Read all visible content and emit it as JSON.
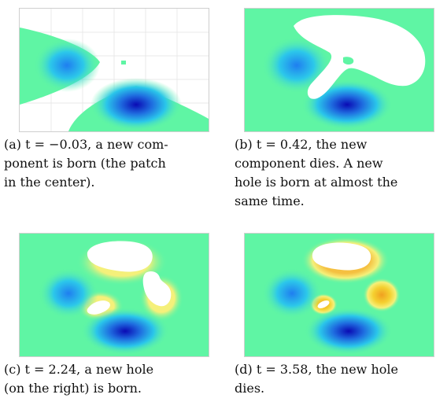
{
  "figure": {
    "subfigures": [
      {
        "id": "a",
        "label": "(a)",
        "t_expr": "t = −0.03",
        "text": ", a new com-ponent is born (the patch in the center)."
      },
      {
        "id": "b",
        "label": "(b)",
        "t_expr": "t = 0.42",
        "text": ", the new component dies. A new hole is born at almost the same time."
      },
      {
        "id": "c",
        "label": "(c)",
        "t_expr": "t = 2.24",
        "text": ", a new hole (on the right) is born."
      },
      {
        "id": "d",
        "label": "(d)",
        "t_expr": "t = 3.58",
        "text": ", the new hole dies."
      }
    ],
    "caption_lines": {
      "a": [
        "(a) t = −0.03, a new com-",
        "ponent is born (the patch",
        "in the center)."
      ],
      "b": [
        "(b) t = 0.42, the new",
        "component dies. A new",
        "hole is born at almost the",
        "same time."
      ],
      "c": [
        "(c) t = 2.24, a new hole",
        "(on the right) is born."
      ],
      "d": [
        "(d) t = 3.58, the new hole",
        "dies."
      ]
    },
    "colors": {
      "background": "#5ff5a4",
      "blue_deep": "#0a0ab4",
      "blue_mid": "#1f8ef0",
      "cyan": "#35e0e0",
      "yellow": "#f5f07a",
      "orange": "#f0a020",
      "hole": "#ffffff"
    }
  }
}
